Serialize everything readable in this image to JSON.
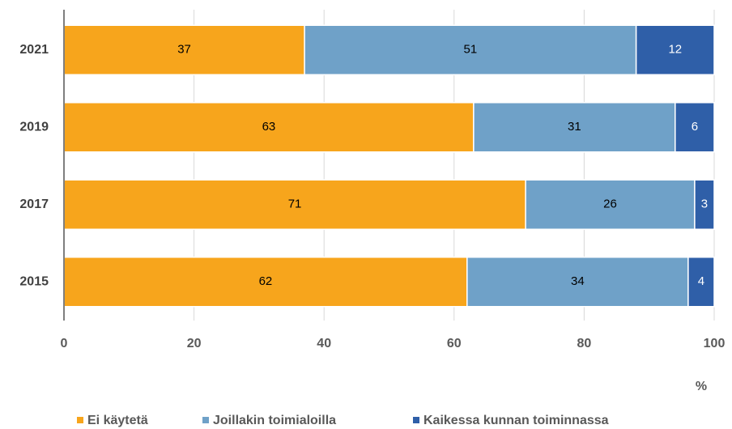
{
  "chart_data": {
    "type": "bar",
    "orientation": "horizontal",
    "stacked": true,
    "categories": [
      "2021",
      "2019",
      "2017",
      "2015"
    ],
    "series": [
      {
        "name": "Ei käytetä",
        "color": "#f7a51c",
        "label_color": "#000000",
        "values": [
          37,
          63,
          71,
          62
        ]
      },
      {
        "name": "Joillakin toimialoilla",
        "color": "#6fa1c8",
        "label_color": "#000000",
        "values": [
          51,
          31,
          26,
          34
        ]
      },
      {
        "name": "Kaikessa kunnan toiminnassa",
        "color": "#2f5fa8",
        "label_color": "#ffffff",
        "values": [
          12,
          6,
          3,
          4
        ]
      }
    ],
    "xlabel": "%",
    "xlim": [
      0,
      100
    ],
    "xticks": [
      0,
      20,
      40,
      60,
      80,
      100
    ],
    "grid": true,
    "legend": "bottom"
  }
}
